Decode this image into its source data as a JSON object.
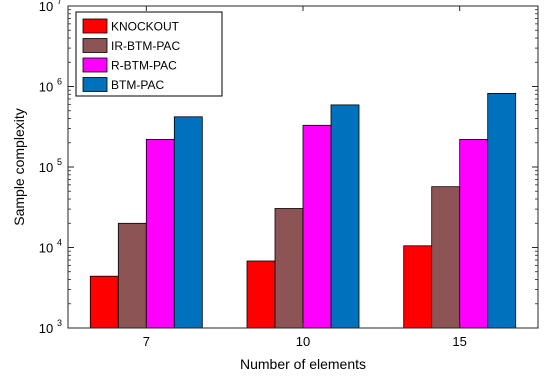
{
  "chart_data": {
    "type": "bar",
    "xlabel": "Number of elements",
    "ylabel": "Sample complexity",
    "yscale": "log",
    "ylim": [
      1000,
      10000000
    ],
    "grid": false,
    "legend_position": "top-left",
    "categories": [
      "7",
      "10",
      "15"
    ],
    "series": [
      {
        "name": "KNOCKOUT",
        "color": "#ff0000",
        "values": [
          4400,
          6800,
          10500
        ]
      },
      {
        "name": "IR-BTM-PAC",
        "color": "#8c5454",
        "values": [
          20000,
          30500,
          57000
        ]
      },
      {
        "name": "R-BTM-PAC",
        "color": "#ff00ff",
        "values": [
          220000,
          330000,
          220000
        ]
      },
      {
        "name": "BTM-PAC",
        "color": "#0072bd",
        "values": [
          420000,
          590000,
          820000
        ]
      }
    ],
    "y_ticks": [
      {
        "value": 1000,
        "base": "10",
        "exp": "3"
      },
      {
        "value": 10000,
        "base": "10",
        "exp": "4"
      },
      {
        "value": 100000,
        "base": "10",
        "exp": "5"
      },
      {
        "value": 1000000,
        "base": "10",
        "exp": "6"
      },
      {
        "value": 10000000,
        "base": "10",
        "exp": "7"
      }
    ]
  }
}
